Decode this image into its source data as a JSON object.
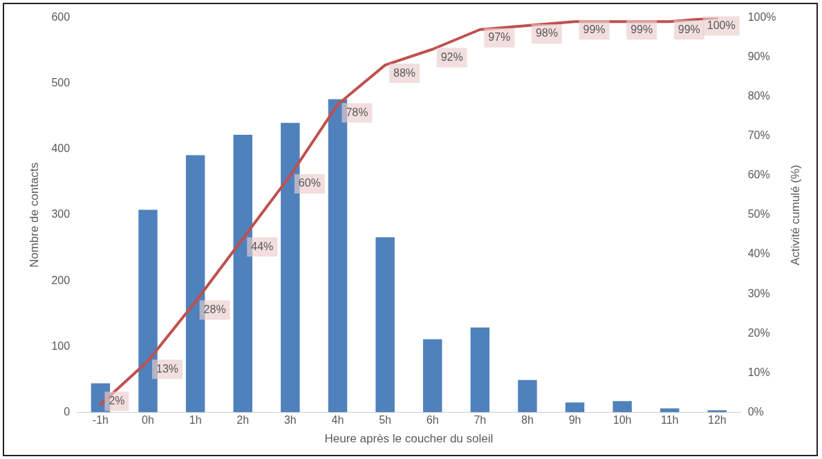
{
  "chart_data": {
    "type": "bar",
    "xlabel": "Heure après le coucher du soleil",
    "ylabel": "Nombre de contacts",
    "y2label": "Activité cumulé (%)",
    "categories": [
      "-1h",
      "0h",
      "1h",
      "2h",
      "3h",
      "4h",
      "5h",
      "6h",
      "7h",
      "8h",
      "9h",
      "10h",
      "11h",
      "12h"
    ],
    "series": [
      {
        "color": "#4f81bd",
        "values": [
          44,
          308,
          391,
          422,
          440,
          476,
          266,
          111,
          129,
          49,
          15,
          17,
          6,
          3
        ]
      },
      {
        "type": "line",
        "axis": "y2",
        "color": "#c0504d",
        "data_labels": true,
        "values": [
          2,
          13,
          28,
          44,
          60,
          78,
          88,
          92,
          97,
          98,
          99,
          99,
          99,
          100
        ],
        "value_labels": [
          "2%",
          "13%",
          "28%",
          "44%",
          "60%",
          "78%",
          "88%",
          "92%",
          "97%",
          "98%",
          "99%",
          "99%",
          "99%",
          "100%"
        ]
      }
    ],
    "ylim": [
      0,
      600
    ],
    "yticks": [
      0,
      100,
      200,
      300,
      400,
      500,
      600
    ],
    "y2lim": [
      0,
      100
    ],
    "y2ticks": [
      {
        "value": 0,
        "label": "0%"
      },
      {
        "value": 10,
        "label": "10%"
      },
      {
        "value": 20,
        "label": "20%"
      },
      {
        "value": 30,
        "label": "30%"
      },
      {
        "value": 40,
        "label": "40%"
      },
      {
        "value": 50,
        "label": "50%"
      },
      {
        "value": 60,
        "label": "60%"
      },
      {
        "value": 70,
        "label": "70%"
      },
      {
        "value": 80,
        "label": "80%"
      },
      {
        "value": 90,
        "label": "90%"
      },
      {
        "value": 100,
        "label": "100%"
      }
    ],
    "grid": false,
    "legend": false,
    "marker": "none"
  }
}
